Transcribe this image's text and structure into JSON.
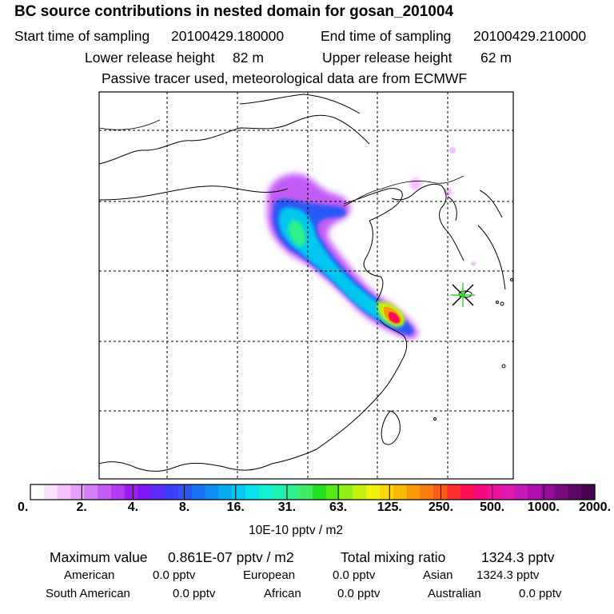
{
  "header": {
    "title": "BC  source contributions in nested domain for gosan_201004",
    "start_label": "Start time of sampling",
    "start_value": "20100429.180000",
    "end_label": "End time of sampling",
    "end_value": "20100429.210000",
    "lower_label": "Lower release height",
    "lower_value": "82 m",
    "upper_label": "Upper release height",
    "upper_value": "62 m",
    "note": "Passive tracer used, meteorological data are from ECMWF"
  },
  "chart_data": {
    "type": "heatmap",
    "title": "BC  source contributions in nested domain for gosan_201004",
    "colorbar_ticks": [
      "0.",
      "2.",
      "4.",
      "8.",
      "16.",
      "31.",
      "63.",
      "125.",
      "250.",
      "500.",
      "1000.",
      "2000."
    ],
    "colorbar_unit": "10E-10 pptv / m2",
    "colorbar_colors": [
      "#ffffff",
      "#fce4ff",
      "#f3c2fc",
      "#e7a0fb",
      "#d77ef9",
      "#c65cf7",
      "#b23cf3",
      "#9c1cf0",
      "#7f18f4",
      "#5a2dfa",
      "#3c40f8",
      "#2a56f5",
      "#1a73f3",
      "#108ff2",
      "#09abf1",
      "#06c7f0",
      "#06e2ec",
      "#10f0d5",
      "#1ef0b2",
      "#2ff08c",
      "#40ec63",
      "#20e020",
      "#58e818",
      "#8ef014",
      "#c4f010",
      "#f0f00c",
      "#f8d808",
      "#f8b808",
      "#f89a08",
      "#f87c10",
      "#f85a18",
      "#ff3030",
      "#ff1050",
      "#f80880",
      "#f010a0",
      "#e018b0",
      "#c818b8",
      "#b010b0",
      "#940c98",
      "#7a0a80",
      "#600868",
      "#480650"
    ],
    "axes": {
      "grid": true,
      "gridline_style": "dashed"
    },
    "plume": "Tracer plume extending from the North China Plain south-east towards the Yangtze River Delta near Shanghai",
    "receptor": "Gosan (Jeju Island)"
  },
  "stats": {
    "max_label": "Maximum value",
    "max_value": "0.861E-07 pptv / m2",
    "total_label": "Total mixing ratio",
    "total_value": "1324.3 pptv",
    "regions": [
      {
        "name": "American",
        "value": "0.0 pptv"
      },
      {
        "name": "European",
        "value": "0.0 pptv"
      },
      {
        "name": "Asian",
        "value": "1324.3 pptv"
      },
      {
        "name": "South American",
        "value": "0.0 pptv"
      },
      {
        "name": "African",
        "value": "0.0 pptv"
      },
      {
        "name": "Australian",
        "value": "0.0 pptv"
      }
    ]
  }
}
